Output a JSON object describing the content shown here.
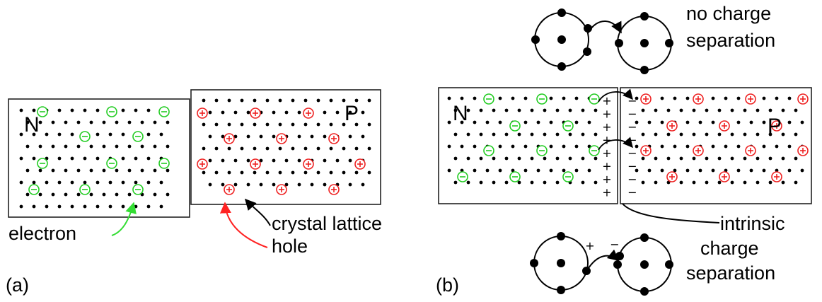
{
  "panel_a": {
    "id_label": "(a)",
    "n_region_label": "N",
    "p_region_label": "P",
    "electron_label": "electron",
    "lattice_label": "crystal lattice",
    "hole_label": "hole"
  },
  "panel_b": {
    "id_label": "(b)",
    "n_region_label": "N",
    "p_region_label": "P",
    "top_caption_line1": "no charge",
    "top_caption_line2": "separation",
    "intrinsic_label": "intrinsic",
    "bottom_caption_line1": "charge",
    "bottom_caption_line2": "separation",
    "plus_sign": "+",
    "minus_sign": "−"
  },
  "colors": {
    "electron": "#22cc22",
    "hole": "#ee2222",
    "electron_arrow": "#33dd33",
    "hole_arrow": "#ff2222",
    "lattice_dot": "#000000",
    "outline": "#222222"
  },
  "symbols": {
    "electron_symbol": "circled-minus",
    "hole_symbol": "circled-plus"
  }
}
